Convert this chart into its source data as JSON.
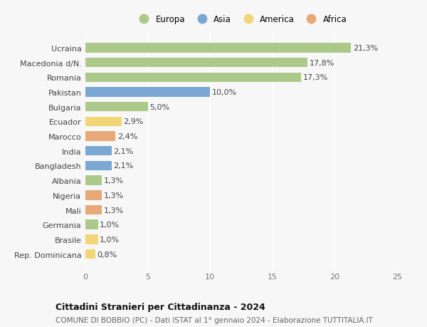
{
  "categories": [
    "Rep. Dominicana",
    "Brasile",
    "Germania",
    "Mali",
    "Nigeria",
    "Albania",
    "Bangladesh",
    "India",
    "Marocco",
    "Ecuador",
    "Bulgaria",
    "Pakistan",
    "Romania",
    "Macedonia d/N.",
    "Ucraina"
  ],
  "values": [
    0.8,
    1.0,
    1.0,
    1.3,
    1.3,
    1.3,
    2.1,
    2.1,
    2.4,
    2.9,
    5.0,
    10.0,
    17.3,
    17.8,
    21.3
  ],
  "continents": [
    "America",
    "America",
    "Europa",
    "Africa",
    "Africa",
    "Europa",
    "Asia",
    "Asia",
    "Africa",
    "America",
    "Europa",
    "Asia",
    "Europa",
    "Europa",
    "Europa"
  ],
  "labels": [
    "0,8%",
    "1,0%",
    "1,0%",
    "1,3%",
    "1,3%",
    "1,3%",
    "2,1%",
    "2,1%",
    "2,4%",
    "2,9%",
    "5,0%",
    "10,0%",
    "17,3%",
    "17,8%",
    "21,3%"
  ],
  "continent_colors": {
    "Europa": "#adc98a",
    "Asia": "#7aa8d2",
    "America": "#f2d675",
    "Africa": "#e8a878"
  },
  "bg_color": "#f7f7f7",
  "title": "Cittadini Stranieri per Cittadinanza - 2024",
  "subtitle": "COMUNE DI BOBBIO (PC) - Dati ISTAT al 1° gennaio 2024 - Elaborazione TUTTITALIA.IT",
  "xlim": [
    0,
    25
  ],
  "xticks": [
    0,
    5,
    10,
    15,
    20,
    25
  ],
  "legend_order": [
    "Europa",
    "Asia",
    "America",
    "Africa"
  ],
  "bar_height": 0.65,
  "label_fontsize": 8,
  "tick_fontsize": 8,
  "title_fontsize": 9,
  "subtitle_fontsize": 7.5,
  "legend_fontsize": 8.5
}
